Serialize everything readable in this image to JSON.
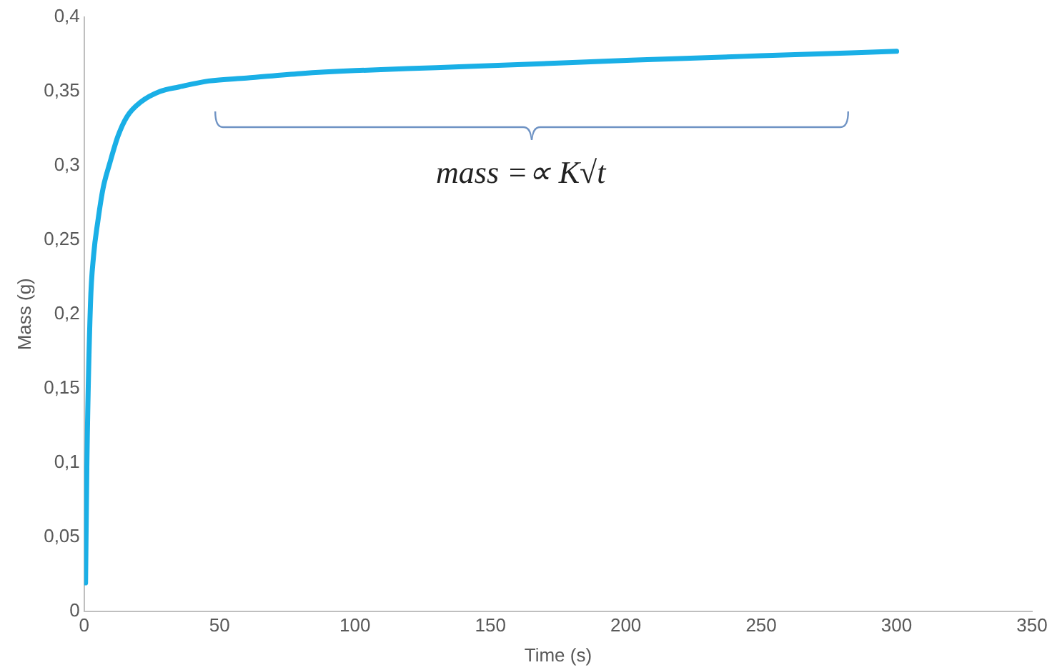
{
  "chart_data": {
    "type": "line",
    "xlabel": "Time (s)",
    "ylabel": "Mass (g)",
    "x": [
      0.5,
      1,
      2.3,
      3.5,
      5,
      7,
      9.5,
      12.5,
      15.8,
      21,
      28,
      35,
      46,
      60,
      80,
      100,
      130,
      160,
      202,
      250,
      300
    ],
    "series": [
      {
        "color": "#1aafe6",
        "values": [
          0.019,
          0.1,
          0.206,
          0.24,
          0.262,
          0.285,
          0.302,
          0.32,
          0.333,
          0.343,
          0.35,
          0.353,
          0.357,
          0.359,
          0.362,
          0.364,
          0.366,
          0.368,
          0.371,
          0.374,
          0.377
        ]
      }
    ],
    "xlim": [
      0,
      350
    ],
    "xticks": [
      0,
      50,
      100,
      150,
      200,
      250,
      300,
      350
    ],
    "ylim": [
      0,
      0.4
    ],
    "yticks": [
      0,
      {
        "value": 0.05,
        "label": "0,05"
      },
      {
        "value": 0.1,
        "label": "0,1"
      },
      {
        "value": 0.15,
        "label": "0,15"
      },
      {
        "value": 0.2,
        "label": "0,2"
      },
      {
        "value": 0.25,
        "label": "0,25"
      },
      {
        "value": 0.3,
        "label": "0,3"
      },
      {
        "value": 0.35,
        "label": "0,35"
      },
      {
        "value": 0.4,
        "label": "0,4"
      }
    ],
    "grid": false,
    "legend": false,
    "marker": "none",
    "line_style": "solid",
    "annotations": [
      "mass =∝ K√t"
    ]
  }
}
